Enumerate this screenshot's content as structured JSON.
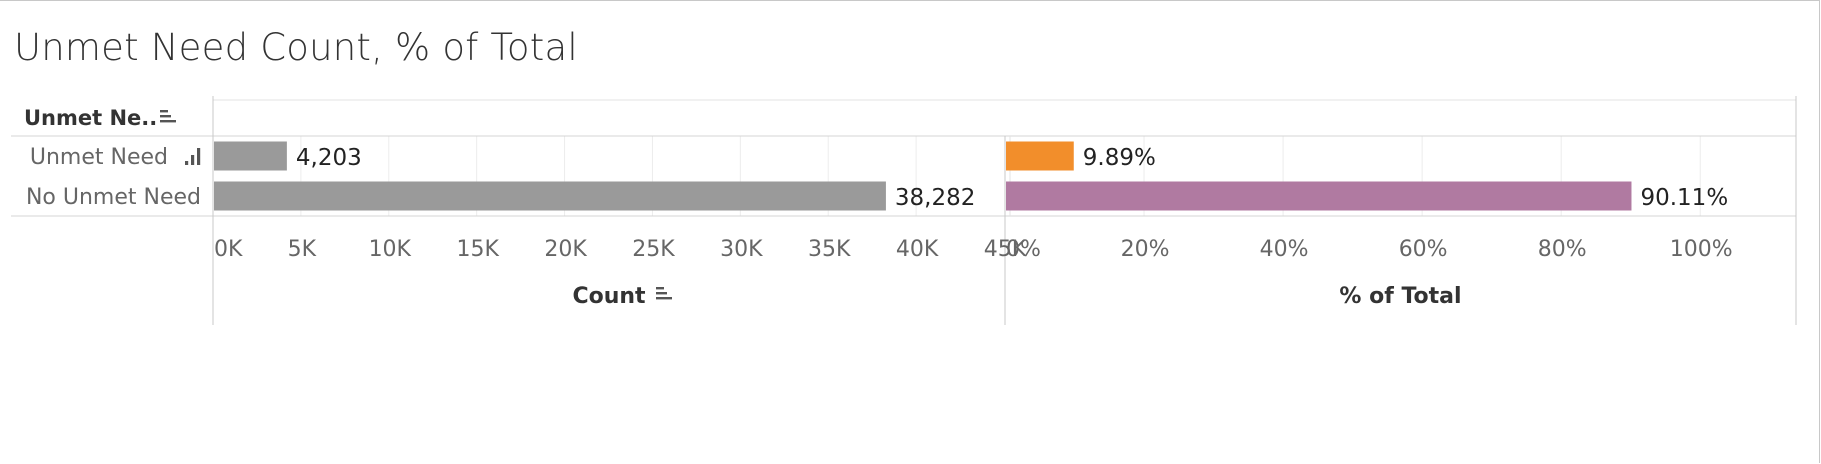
{
  "title": "Unmet Need Count, % of Total",
  "header": {
    "row_label": "Unmet Ne.."
  },
  "chart_data": [
    {
      "type": "bar",
      "orientation": "horizontal",
      "categories": [
        "Unmet Need",
        "No Unmet Need"
      ],
      "values": [
        4203,
        38282
      ],
      "value_labels": [
        "4,203",
        "38,282"
      ],
      "xlabel": "Count",
      "xlim": [
        0,
        45000
      ],
      "ticks": [
        0,
        5000,
        10000,
        15000,
        20000,
        25000,
        30000,
        35000,
        40000,
        45000
      ],
      "tick_labels": [
        "0K",
        "5K",
        "10K",
        "15K",
        "20K",
        "25K",
        "30K",
        "35K",
        "40K",
        "45K"
      ],
      "colors": [
        "#9a9a9a",
        "#9a9a9a"
      ],
      "grid": true
    },
    {
      "type": "bar",
      "orientation": "horizontal",
      "categories": [
        "Unmet Need",
        "No Unmet Need"
      ],
      "values": [
        9.89,
        90.11
      ],
      "value_labels": [
        "9.89%",
        "90.11%"
      ],
      "xlabel": "% of Total",
      "xlim": [
        0,
        105
      ],
      "ticks": [
        0,
        20,
        40,
        60,
        80,
        100
      ],
      "tick_labels": [
        "0%",
        "20%",
        "40%",
        "60%",
        "80%",
        "100%"
      ],
      "colors": [
        "#f28e2b",
        "#b07aa1"
      ],
      "grid": true
    }
  ],
  "icons": {
    "row_header_sort": "sort-descending-icon",
    "row_sort": "bar-sort-icon",
    "axis_sort": "sort-descending-icon"
  }
}
